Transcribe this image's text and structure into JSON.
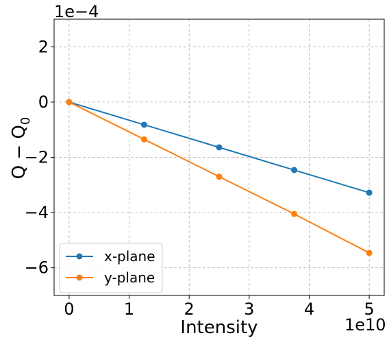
{
  "chart_data": {
    "type": "line",
    "title": "",
    "xlabel": "Intensity",
    "ylabel_main": "Q − Q",
    "ylabel_sub": "0",
    "x_offset_label": "1e10",
    "y_offset_label": "1e−4",
    "x_scale_power": 10,
    "y_scale_power": -4,
    "xlim": [
      -0.25,
      5.25
    ],
    "ylim": [
      -7,
      3
    ],
    "xticks": [
      0,
      1,
      2,
      3,
      4,
      5
    ],
    "yticks": [
      -6,
      -4,
      -2,
      0,
      2
    ],
    "xtick_labels": [
      "0",
      "1",
      "2",
      "3",
      "4",
      "5"
    ],
    "ytick_labels": [
      "−6",
      "−4",
      "−2",
      "0",
      "2"
    ],
    "grid": true,
    "legend_position": "lower-left",
    "x": [
      0,
      1.25,
      2.5,
      3.75,
      5
    ],
    "series": [
      {
        "name": "x-plane",
        "color": "#1f77b4",
        "values": [
          0,
          -0.82,
          -1.64,
          -2.46,
          -3.28
        ]
      },
      {
        "name": "y-plane",
        "color": "#ff7f0e",
        "values": [
          0,
          -1.35,
          -2.7,
          -4.05,
          -5.46
        ]
      }
    ]
  }
}
